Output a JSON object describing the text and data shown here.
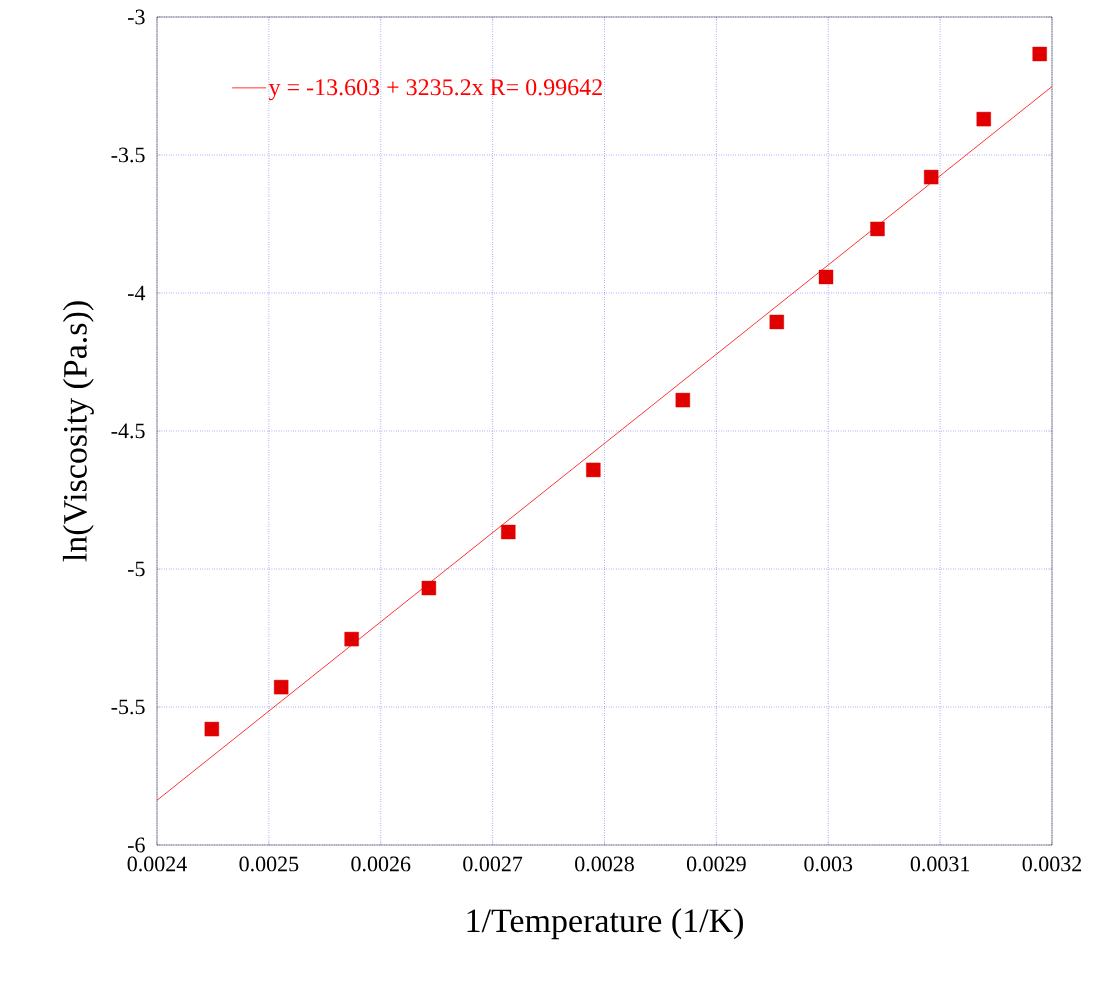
{
  "chart_data": {
    "type": "scatter",
    "xlabel": "1/Temperature (1/K)",
    "ylabel": "ln(Viscosity (Pa.s))",
    "xlim": [
      0.0024,
      0.0032
    ],
    "ylim": [
      -6,
      -3
    ],
    "xticks": [
      0.0024,
      0.0025,
      0.0026,
      0.0027,
      0.0028,
      0.0029,
      0.003,
      0.0031,
      0.0032
    ],
    "yticks": [
      -6,
      -5.5,
      -5,
      -4.5,
      -4,
      -3.5,
      -3
    ],
    "grid": true,
    "legend": "top left",
    "series": [
      {
        "marker": "square",
        "color": "#e00000",
        "x": [
          0.002449,
          0.002511,
          0.002574,
          0.002643,
          0.002714,
          0.00279,
          0.00287,
          0.002954,
          0.002998,
          0.003044,
          0.003092,
          0.003139,
          0.003189
        ],
        "values": [
          -5.58,
          -5.428,
          -5.254,
          -5.069,
          -4.866,
          -4.641,
          -4.388,
          -4.105,
          -3.942,
          -3.768,
          -3.58,
          -3.37,
          -3.134
        ]
      },
      {
        "type": "line",
        "name": "y = -13.603 + 3235.2x   R= 0.99642",
        "color": "#ff0000",
        "x": [
          0.0024,
          0.0032
        ],
        "values": [
          -5.838,
          -3.252
        ]
      }
    ]
  }
}
